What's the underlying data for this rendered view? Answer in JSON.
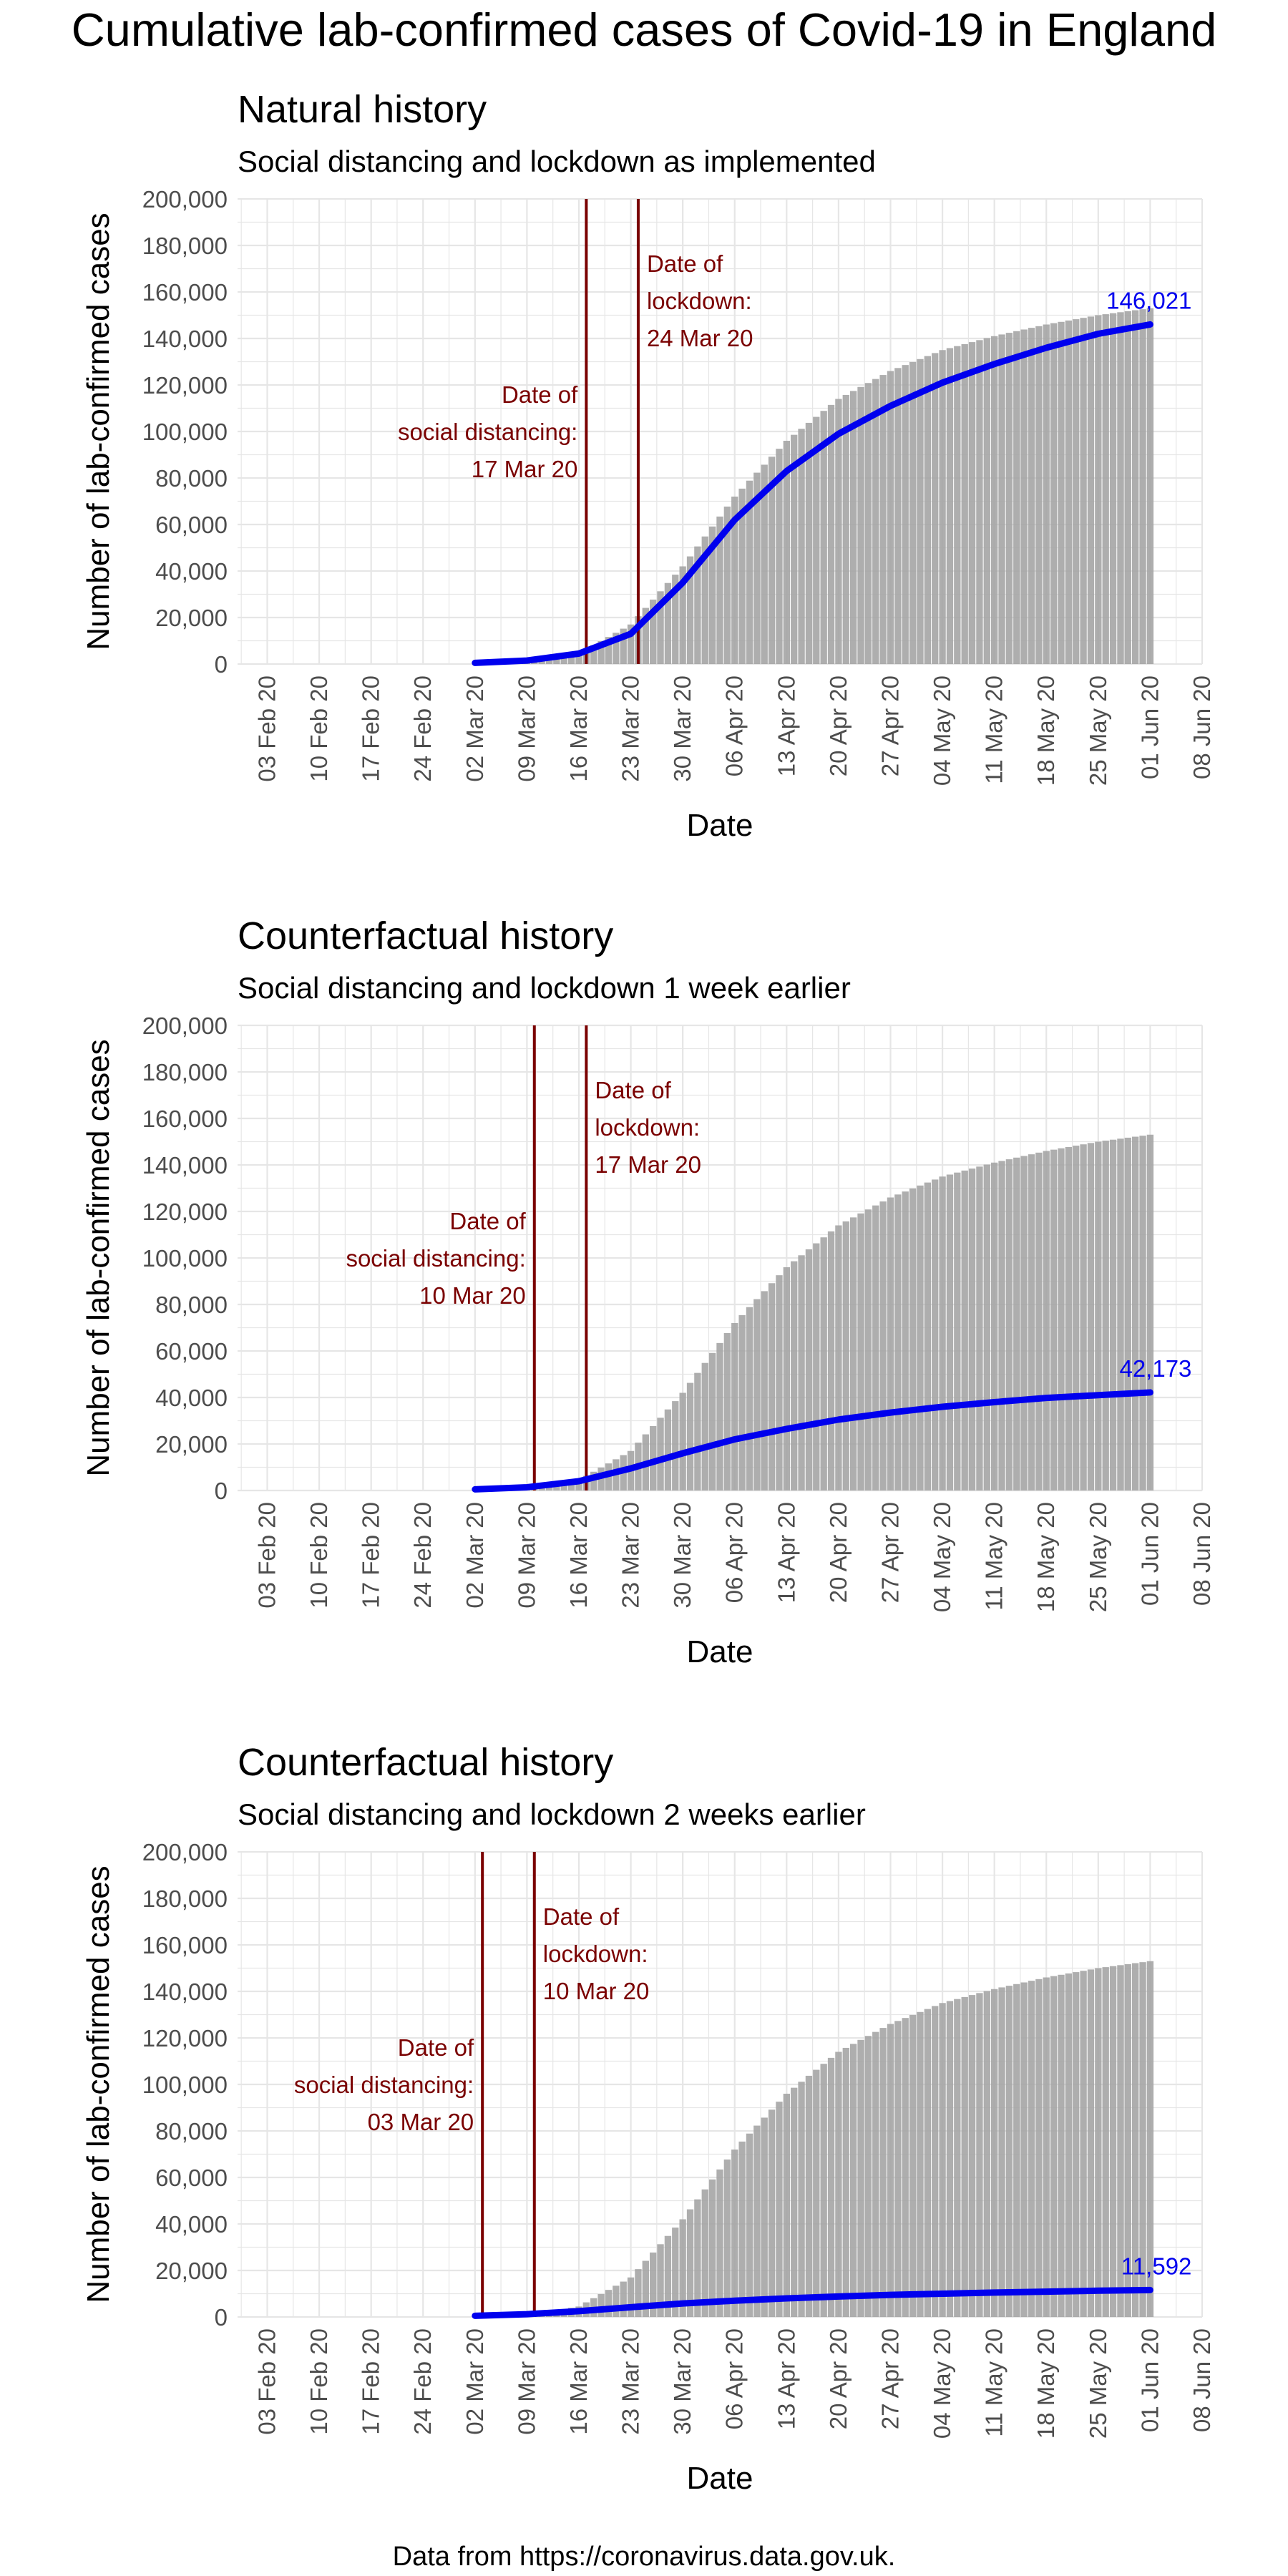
{
  "title": "Cumulative lab-confirmed cases of Covid-19 in England",
  "footer": "Data from https://coronavirus.data.gov.uk.",
  "colors": {
    "model_line": "#0000ee",
    "event_line": "#7a0000",
    "bars": "#a0a0a0",
    "gridlines": "#e6e6e6",
    "end_label": "#0000ee"
  },
  "chart_data": [
    {
      "type": "line",
      "title": "Natural history",
      "subtitle": "Social distancing and lockdown as implemented",
      "xlabel": "Date",
      "ylabel": "Number of lab-confirmed cases",
      "xlim": [
        "2020-01-30",
        "2020-06-08"
      ],
      "ylim": [
        0,
        200000
      ],
      "yticks": [
        "0",
        "20,000",
        "40,000",
        "60,000",
        "80,000",
        "100,000",
        "120,000",
        "140,000",
        "160,000",
        "180,000",
        "200,000"
      ],
      "xticks": [
        "03 Feb 20",
        "10 Feb 20",
        "17 Feb 20",
        "24 Feb 20",
        "02 Mar 20",
        "09 Mar 20",
        "16 Mar 20",
        "23 Mar 20",
        "30 Mar 20",
        "06 Apr 20",
        "13 Apr 20",
        "20 Apr 20",
        "27 Apr 20",
        "04 May 20",
        "11 May 20",
        "18 May 20",
        "25 May 20",
        "01 Jun 20",
        "08 Jun 20"
      ],
      "grid": true,
      "observed_bars": {
        "dates": [
          "2020-03-02",
          "2020-03-09",
          "2020-03-16",
          "2020-03-23",
          "2020-03-30",
          "2020-04-06",
          "2020-04-13",
          "2020-04-20",
          "2020-04-27",
          "2020-05-04",
          "2020-05-11",
          "2020-05-18",
          "2020-05-25",
          "2020-06-01"
        ],
        "values": [
          100,
          600,
          4500,
          17000,
          42000,
          72000,
          96000,
          114000,
          126000,
          135000,
          141000,
          146000,
          150000,
          153000
        ]
      },
      "series": [
        {
          "dates": [
            "2020-03-02",
            "2020-03-09",
            "2020-03-16",
            "2020-03-23",
            "2020-03-30",
            "2020-04-06",
            "2020-04-13",
            "2020-04-20",
            "2020-04-27",
            "2020-05-04",
            "2020-05-11",
            "2020-05-18",
            "2020-05-25",
            "2020-06-01"
          ],
          "values": [
            500,
            1500,
            4500,
            13000,
            35000,
            62000,
            83000,
            99000,
            111000,
            121000,
            129000,
            136000,
            142000,
            146021
          ]
        }
      ],
      "end_label": "146,021",
      "events": [
        {
          "date": "2020-03-17",
          "label_lines": [
            "Date of",
            "social distancing:",
            "17 Mar 20"
          ],
          "side": "left"
        },
        {
          "date": "2020-03-24",
          "label_lines": [
            "Date of",
            "lockdown:",
            "24 Mar 20"
          ],
          "side": "right"
        }
      ]
    },
    {
      "type": "line",
      "title": "Counterfactual history",
      "subtitle": "Social distancing and lockdown 1 week earlier",
      "xlabel": "Date",
      "ylabel": "Number of lab-confirmed cases",
      "xlim": [
        "2020-01-30",
        "2020-06-08"
      ],
      "ylim": [
        0,
        200000
      ],
      "yticks": [
        "0",
        "20,000",
        "40,000",
        "60,000",
        "80,000",
        "100,000",
        "120,000",
        "140,000",
        "160,000",
        "180,000",
        "200,000"
      ],
      "xticks": [
        "03 Feb 20",
        "10 Feb 20",
        "17 Feb 20",
        "24 Feb 20",
        "02 Mar 20",
        "09 Mar 20",
        "16 Mar 20",
        "23 Mar 20",
        "30 Mar 20",
        "06 Apr 20",
        "13 Apr 20",
        "20 Apr 20",
        "27 Apr 20",
        "04 May 20",
        "11 May 20",
        "18 May 20",
        "25 May 20",
        "01 Jun 20",
        "08 Jun 20"
      ],
      "grid": true,
      "observed_bars": {
        "dates": [
          "2020-03-02",
          "2020-03-09",
          "2020-03-16",
          "2020-03-23",
          "2020-03-30",
          "2020-04-06",
          "2020-04-13",
          "2020-04-20",
          "2020-04-27",
          "2020-05-04",
          "2020-05-11",
          "2020-05-18",
          "2020-05-25",
          "2020-06-01"
        ],
        "values": [
          100,
          600,
          4500,
          17000,
          42000,
          72000,
          96000,
          114000,
          126000,
          135000,
          141000,
          146000,
          150000,
          153000
        ]
      },
      "series": [
        {
          "dates": [
            "2020-03-02",
            "2020-03-09",
            "2020-03-16",
            "2020-03-23",
            "2020-03-30",
            "2020-04-06",
            "2020-04-13",
            "2020-04-20",
            "2020-04-27",
            "2020-05-04",
            "2020-05-11",
            "2020-05-18",
            "2020-05-25",
            "2020-06-01"
          ],
          "values": [
            500,
            1400,
            4000,
            9500,
            16000,
            22000,
            26500,
            30500,
            33500,
            36000,
            38000,
            39800,
            41000,
            42173
          ]
        }
      ],
      "end_label": "42,173",
      "events": [
        {
          "date": "2020-03-10",
          "label_lines": [
            "Date of",
            "social distancing:",
            "10 Mar 20"
          ],
          "side": "left"
        },
        {
          "date": "2020-03-17",
          "label_lines": [
            "Date of",
            "lockdown:",
            "17 Mar 20"
          ],
          "side": "right"
        }
      ]
    },
    {
      "type": "line",
      "title": "Counterfactual history",
      "subtitle": "Social distancing and lockdown 2 weeks earlier",
      "xlabel": "Date",
      "ylabel": "Number of lab-confirmed cases",
      "xlim": [
        "2020-01-30",
        "2020-06-08"
      ],
      "ylim": [
        0,
        200000
      ],
      "yticks": [
        "0",
        "20,000",
        "40,000",
        "60,000",
        "80,000",
        "100,000",
        "120,000",
        "140,000",
        "160,000",
        "180,000",
        "200,000"
      ],
      "xticks": [
        "03 Feb 20",
        "10 Feb 20",
        "17 Feb 20",
        "24 Feb 20",
        "02 Mar 20",
        "09 Mar 20",
        "16 Mar 20",
        "23 Mar 20",
        "30 Mar 20",
        "06 Apr 20",
        "13 Apr 20",
        "20 Apr 20",
        "27 Apr 20",
        "04 May 20",
        "11 May 20",
        "18 May 20",
        "25 May 20",
        "01 Jun 20",
        "08 Jun 20"
      ],
      "grid": true,
      "observed_bars": {
        "dates": [
          "2020-03-02",
          "2020-03-09",
          "2020-03-16",
          "2020-03-23",
          "2020-03-30",
          "2020-04-06",
          "2020-04-13",
          "2020-04-20",
          "2020-04-27",
          "2020-05-04",
          "2020-05-11",
          "2020-05-18",
          "2020-05-25",
          "2020-06-01"
        ],
        "values": [
          100,
          600,
          4500,
          17000,
          42000,
          72000,
          96000,
          114000,
          126000,
          135000,
          141000,
          146000,
          150000,
          153000
        ]
      },
      "series": [
        {
          "dates": [
            "2020-03-02",
            "2020-03-09",
            "2020-03-16",
            "2020-03-23",
            "2020-03-30",
            "2020-04-06",
            "2020-04-13",
            "2020-04-20",
            "2020-04-27",
            "2020-05-04",
            "2020-05-11",
            "2020-05-18",
            "2020-05-25",
            "2020-06-01"
          ],
          "values": [
            500,
            1200,
            2500,
            4200,
            5800,
            7000,
            8000,
            8800,
            9500,
            10000,
            10500,
            10900,
            11300,
            11592
          ]
        }
      ],
      "end_label": "11,592",
      "events": [
        {
          "date": "2020-03-03",
          "label_lines": [
            "Date of",
            "social distancing:",
            "03 Mar 20"
          ],
          "side": "left"
        },
        {
          "date": "2020-03-10",
          "label_lines": [
            "Date of",
            "lockdown:",
            "10 Mar 20"
          ],
          "side": "right"
        }
      ]
    }
  ]
}
